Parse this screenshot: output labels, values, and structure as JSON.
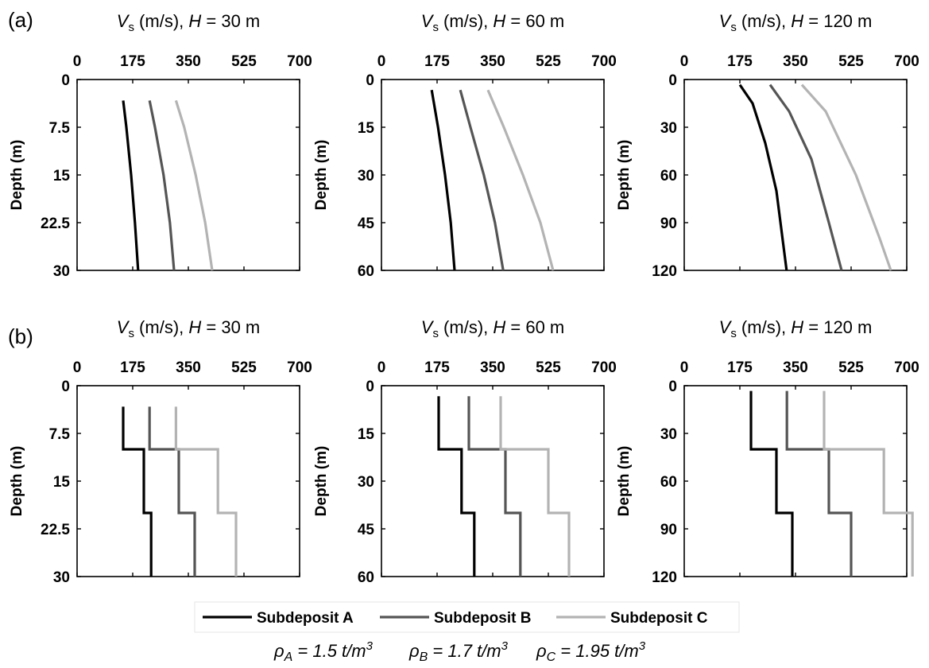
{
  "panel_labels": [
    "(a)",
    "(b)"
  ],
  "chart_data": [
    {
      "type": "line",
      "row": "a",
      "title": {
        "var": "V",
        "sub": "s",
        "mid": " (m/s), ",
        "hvar": "H",
        "rest": " = 30 m"
      },
      "ylabel": "Depth (m)",
      "xlim": [
        0,
        700
      ],
      "xticks": [
        "0",
        "175",
        "350",
        "525",
        "700"
      ],
      "ylim": [
        0,
        30
      ],
      "yticks": [
        "0",
        "7.5",
        "15",
        "22.5",
        "30"
      ],
      "series": [
        {
          "name": "Subdeposit A",
          "color": "#000000",
          "points": [
            [
              145,
              3.3
            ],
            [
              155,
              7.5
            ],
            [
              170,
              15
            ],
            [
              182,
              22.5
            ],
            [
              192,
              30
            ]
          ]
        },
        {
          "name": "Subdeposit B",
          "color": "#555555",
          "points": [
            [
              228,
              3.3
            ],
            [
              245,
              7.5
            ],
            [
              272,
              15
            ],
            [
              292,
              22.5
            ],
            [
              305,
              30
            ]
          ]
        },
        {
          "name": "Subdeposit C",
          "color": "#b3b3b3",
          "points": [
            [
              311,
              3.3
            ],
            [
              337,
              7.5
            ],
            [
              373,
              15
            ],
            [
              403,
              22.5
            ],
            [
              425,
              30
            ]
          ]
        }
      ]
    },
    {
      "type": "line",
      "row": "a",
      "title": {
        "var": "V",
        "sub": "s",
        "mid": " (m/s), ",
        "hvar": "H",
        "rest": " = 60 m"
      },
      "ylabel": "Depth (m)",
      "xlim": [
        0,
        700
      ],
      "xticks": [
        "0",
        "175",
        "350",
        "525",
        "700"
      ],
      "ylim": [
        0,
        60
      ],
      "yticks": [
        "0",
        "15",
        "30",
        "45",
        "60"
      ],
      "series": [
        {
          "name": "Subdeposit A",
          "color": "#000000",
          "points": [
            [
              158,
              3.3
            ],
            [
              178,
              15
            ],
            [
              200,
              30
            ],
            [
              218,
              45
            ],
            [
              230,
              60
            ]
          ]
        },
        {
          "name": "Subdeposit B",
          "color": "#555555",
          "points": [
            [
              248,
              3.3
            ],
            [
              280,
              15
            ],
            [
              322,
              30
            ],
            [
              357,
              45
            ],
            [
              383,
              60
            ]
          ]
        },
        {
          "name": "Subdeposit C",
          "color": "#b3b3b3",
          "points": [
            [
              335,
              3.3
            ],
            [
              385,
              15
            ],
            [
              445,
              30
            ],
            [
              500,
              45
            ],
            [
              540,
              60
            ]
          ]
        }
      ]
    },
    {
      "type": "line",
      "row": "a",
      "title": {
        "var": "V",
        "sub": "s",
        "mid": " (m/s), ",
        "hvar": "H",
        "rest": " = 120 m"
      },
      "ylabel": "Depth (m)",
      "xlim": [
        0,
        700
      ],
      "xticks": [
        "0",
        "175",
        "350",
        "525",
        "700"
      ],
      "ylim": [
        0,
        120
      ],
      "yticks": [
        "0",
        "30",
        "60",
        "90",
        "120"
      ],
      "series": [
        {
          "name": "Subdeposit A",
          "color": "#000000",
          "points": [
            [
              175,
              3.3
            ],
            [
              215,
              15
            ],
            [
              255,
              40
            ],
            [
              290,
              70
            ],
            [
              322,
              120
            ]
          ]
        },
        {
          "name": "Subdeposit B",
          "color": "#555555",
          "points": [
            [
              270,
              3.3
            ],
            [
              330,
              20
            ],
            [
              400,
              50
            ],
            [
              455,
              90
            ],
            [
              495,
              120
            ]
          ]
        },
        {
          "name": "Subdeposit C",
          "color": "#b3b3b3",
          "points": [
            [
              370,
              3.3
            ],
            [
              445,
              20
            ],
            [
              540,
              60
            ],
            [
              615,
              100
            ],
            [
              650,
              120
            ]
          ]
        }
      ]
    },
    {
      "type": "line",
      "row": "b",
      "title": {
        "var": "V",
        "sub": "s",
        "mid": " (m/s), ",
        "hvar": "H",
        "rest": " = 30 m"
      },
      "ylabel": "Depth (m)",
      "xlim": [
        0,
        700
      ],
      "xticks": [
        "0",
        "175",
        "350",
        "525",
        "700"
      ],
      "ylim": [
        0,
        30
      ],
      "yticks": [
        "0",
        "7.5",
        "15",
        "22.5",
        "30"
      ],
      "series": [
        {
          "name": "Subdeposit A",
          "color": "#000000",
          "points": [
            [
              145,
              3.3
            ],
            [
              145,
              10
            ],
            [
              210,
              10
            ],
            [
              210,
              20
            ],
            [
              233,
              20
            ],
            [
              233,
              30
            ]
          ]
        },
        {
          "name": "Subdeposit B",
          "color": "#555555",
          "points": [
            [
              228,
              3.3
            ],
            [
              228,
              10
            ],
            [
              320,
              10
            ],
            [
              320,
              20
            ],
            [
              370,
              20
            ],
            [
              370,
              30
            ]
          ]
        },
        {
          "name": "Subdeposit C",
          "color": "#b3b3b3",
          "points": [
            [
              311,
              3.3
            ],
            [
              311,
              10
            ],
            [
              443,
              10
            ],
            [
              443,
              20
            ],
            [
              500,
              20
            ],
            [
              500,
              30
            ]
          ]
        }
      ]
    },
    {
      "type": "line",
      "row": "b",
      "title": {
        "var": "V",
        "sub": "s",
        "mid": " (m/s), ",
        "hvar": "H",
        "rest": " = 60 m"
      },
      "ylabel": "Depth (m)",
      "xlim": [
        0,
        700
      ],
      "xticks": [
        "0",
        "175",
        "350",
        "525",
        "700"
      ],
      "ylim": [
        0,
        60
      ],
      "yticks": [
        "0",
        "15",
        "30",
        "45",
        "60"
      ],
      "series": [
        {
          "name": "Subdeposit A",
          "color": "#000000",
          "points": [
            [
              180,
              3.3
            ],
            [
              180,
              20
            ],
            [
              252,
              20
            ],
            [
              252,
              40
            ],
            [
              292,
              40
            ],
            [
              292,
              60
            ]
          ]
        },
        {
          "name": "Subdeposit B",
          "color": "#555555",
          "points": [
            [
              275,
              3.3
            ],
            [
              275,
              20
            ],
            [
              390,
              20
            ],
            [
              390,
              40
            ],
            [
              437,
              40
            ],
            [
              437,
              60
            ]
          ]
        },
        {
          "name": "Subdeposit C",
          "color": "#b3b3b3",
          "points": [
            [
              375,
              3.3
            ],
            [
              375,
              20
            ],
            [
              525,
              20
            ],
            [
              525,
              40
            ],
            [
              590,
              40
            ],
            [
              590,
              60
            ]
          ]
        }
      ]
    },
    {
      "type": "line",
      "row": "b",
      "title": {
        "var": "V",
        "sub": "s",
        "mid": " (m/s), ",
        "hvar": "H",
        "rest": " = 120 m"
      },
      "ylabel": "Depth (m)",
      "xlim": [
        0,
        700
      ],
      "xticks": [
        "0",
        "175",
        "350",
        "525",
        "700"
      ],
      "ylim": [
        0,
        120
      ],
      "yticks": [
        "0",
        "30",
        "60",
        "90",
        "120"
      ],
      "series": [
        {
          "name": "Subdeposit A",
          "color": "#000000",
          "points": [
            [
              210,
              3.3
            ],
            [
              210,
              40
            ],
            [
              290,
              40
            ],
            [
              290,
              80
            ],
            [
              340,
              80
            ],
            [
              340,
              120
            ]
          ]
        },
        {
          "name": "Subdeposit B",
          "color": "#555555",
          "points": [
            [
              323,
              3.3
            ],
            [
              323,
              40
            ],
            [
              455,
              40
            ],
            [
              455,
              80
            ],
            [
              525,
              80
            ],
            [
              525,
              120
            ]
          ]
        },
        {
          "name": "Subdeposit C",
          "color": "#b3b3b3",
          "points": [
            [
              440,
              3.3
            ],
            [
              440,
              40
            ],
            [
              628,
              40
            ],
            [
              628,
              80
            ],
            [
              718,
              80
            ],
            [
              718,
              120
            ]
          ]
        }
      ]
    }
  ],
  "legend": {
    "items": [
      {
        "label": "Subdeposit A",
        "color": "#000000"
      },
      {
        "label": "Subdeposit B",
        "color": "#555555"
      },
      {
        "label": "Subdeposit C",
        "color": "#b3b3b3"
      }
    ]
  },
  "densities": [
    {
      "sym": "ρ",
      "sub": "A",
      "value": " = 1.5 t/m",
      "sup": "3"
    },
    {
      "sym": "ρ",
      "sub": "B",
      "value": " = 1.7 t/m",
      "sup": "3"
    },
    {
      "sym": "ρ",
      "sub": "C",
      "value": " = 1.95 t/m",
      "sup": "3"
    }
  ]
}
